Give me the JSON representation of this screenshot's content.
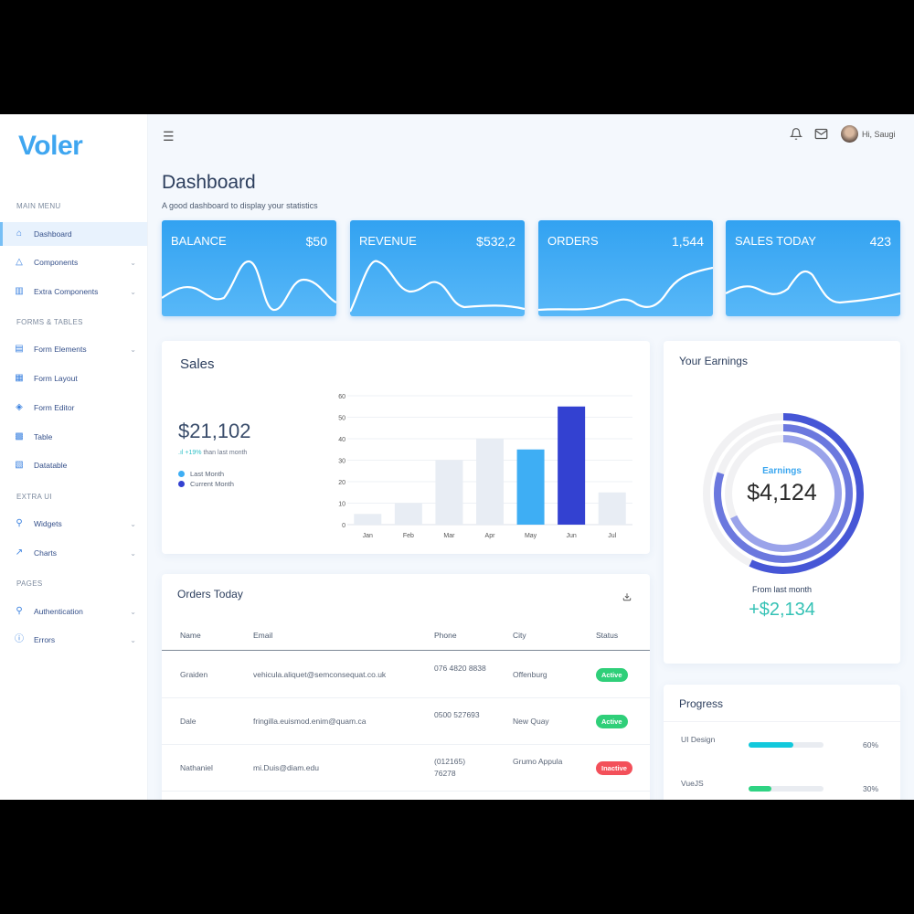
{
  "brand": "Voler",
  "sidebar": {
    "sections": [
      {
        "title": "MAIN MENU",
        "items": [
          {
            "label": "Dashboard",
            "icon": "home-icon",
            "active": true
          },
          {
            "label": "Components",
            "icon": "triangle-icon"
          },
          {
            "label": "Extra Components",
            "icon": "briefcase-icon"
          }
        ]
      },
      {
        "title": "FORMS & TABLES",
        "items": [
          {
            "label": "Form Elements",
            "icon": "file-text-icon"
          },
          {
            "label": "Form Layout",
            "icon": "layout-icon"
          },
          {
            "label": "Form Editor",
            "icon": "layers-icon"
          },
          {
            "label": "Table",
            "icon": "grid-icon"
          },
          {
            "label": "Datatable",
            "icon": "file-plus-icon"
          }
        ]
      },
      {
        "title": "EXTRA UI",
        "items": [
          {
            "label": "Widgets",
            "icon": "user-icon"
          },
          {
            "label": "Charts",
            "icon": "trending-up-icon"
          }
        ]
      },
      {
        "title": "PAGES",
        "items": [
          {
            "label": "Authentication",
            "icon": "user-icon"
          },
          {
            "label": "Errors",
            "icon": "alert-circle-icon"
          }
        ]
      }
    ]
  },
  "header": {
    "greeting": "Hi, Saugi"
  },
  "page": {
    "title": "Dashboard",
    "subtitle": "A good dashboard to display your statistics"
  },
  "stats": [
    {
      "label": "BALANCE",
      "value": "$50"
    },
    {
      "label": "REVENUE",
      "value": "$532,2"
    },
    {
      "label": "ORDERS",
      "value": "1,544"
    },
    {
      "label": "SALES TODAY",
      "value": "423"
    }
  ],
  "sales": {
    "title": "Sales",
    "total": "$21,102",
    "change": "+19%",
    "change_text": "than last month",
    "legend": [
      {
        "name": "Last Month",
        "color": "#3eaef4"
      },
      {
        "name": "Current Month",
        "color": "#3341d1"
      }
    ]
  },
  "chart_data": {
    "type": "bar",
    "categories": [
      "Jan",
      "Feb",
      "Mar",
      "Apr",
      "May",
      "Jun",
      "Jul"
    ],
    "values": [
      5,
      10,
      30,
      40,
      35,
      55,
      15
    ],
    "colors": [
      "#e8edf4",
      "#e8edf4",
      "#e8edf4",
      "#e8edf4",
      "#3eaef4",
      "#3341d1",
      "#e8edf4"
    ],
    "ylim": [
      0,
      60
    ],
    "yticks": [
      0,
      10,
      20,
      30,
      40,
      50,
      60
    ],
    "grid": true
  },
  "earnings": {
    "title": "Your Earnings",
    "center_label": "Earnings",
    "center_value": "$4,124",
    "from_label": "From last month",
    "from_value": "+$2,134",
    "rings": [
      {
        "percent": 57,
        "color": "#4656d6"
      },
      {
        "percent": 80,
        "color": "#6b78de"
      },
      {
        "percent": 68,
        "color": "#9aa3ea"
      }
    ]
  },
  "orders": {
    "title": "Orders Today",
    "columns": [
      "Name",
      "Email",
      "Phone",
      "City",
      "Status"
    ],
    "rows": [
      {
        "name": "Graiden",
        "email": "vehicula.aliquet@semconsequat.co.uk",
        "phone": "076 4820 8838",
        "city": "Offenburg",
        "status": "Active"
      },
      {
        "name": "Dale",
        "email": "fringilla.euismod.enim@quam.ca",
        "phone": "0500 527693",
        "city": "New Quay",
        "status": "Active"
      },
      {
        "name": "Nathaniel",
        "email": "mi.Duis@diam.edu",
        "phone": "(012165) 76278",
        "city": "Grumo Appula",
        "status": "Inactive"
      }
    ]
  },
  "progress": {
    "title": "Progress",
    "items": [
      {
        "label": "UI Design",
        "percent": 60,
        "value": "60%",
        "color": "#12c9dc"
      },
      {
        "label": "VueJS",
        "percent": 30,
        "value": "30%",
        "color": "#2fd383"
      }
    ]
  }
}
